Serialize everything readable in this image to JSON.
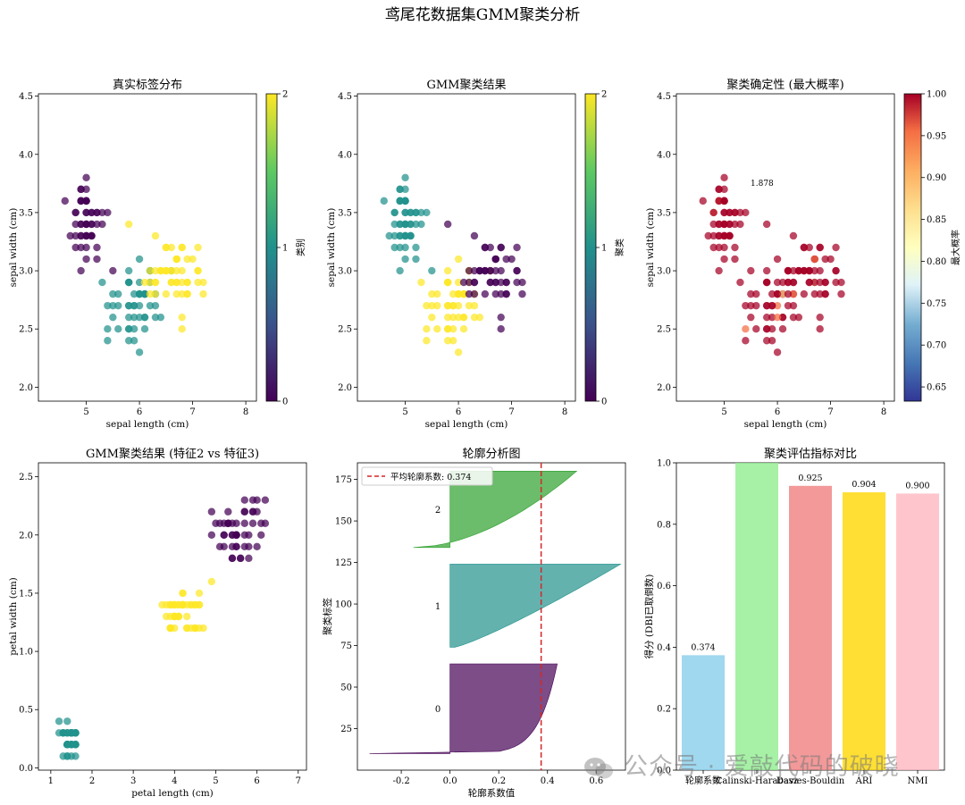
{
  "suptitle": "鸢尾花数据集GMM聚类分析",
  "watermark": "公众号 · 爱敲代码的破晓",
  "chart_data": [
    {
      "type": "scatter",
      "title": "真实标签分布",
      "xlabel": "sepal length (cm)",
      "ylabel": "sepal width (cm)",
      "xlim": [
        4.1,
        8.2
      ],
      "ylim": [
        1.88,
        4.52
      ],
      "xticks": [
        5,
        6,
        7,
        8
      ],
      "yticks": [
        2.0,
        2.5,
        3.0,
        3.5,
        4.0,
        4.5
      ],
      "colorbar": {
        "label": "类别",
        "range": [
          0,
          2
        ],
        "ticks": [
          0,
          1,
          2
        ],
        "cmap": "viridis"
      },
      "points_desc": "150 iris samples colored by true species (0 purple, 1 teal, 2 yellow)"
    },
    {
      "type": "scatter",
      "title": "GMM聚类结果",
      "xlabel": "sepal length (cm)",
      "ylabel": "sepal width (cm)",
      "xlim": [
        4.1,
        8.2
      ],
      "ylim": [
        1.88,
        4.52
      ],
      "xticks": [
        5,
        6,
        7,
        8
      ],
      "yticks": [
        2.0,
        2.5,
        3.0,
        3.5,
        4.0,
        4.5
      ],
      "colorbar": {
        "label": "聚类",
        "range": [
          0,
          2
        ],
        "ticks": [
          0,
          1,
          2
        ],
        "cmap": "viridis"
      },
      "points_desc": "150 samples colored by GMM cluster (1 teal setosa, 2 yellow, 0 purple)"
    },
    {
      "type": "scatter",
      "title": "聚类确定性 (最大概率)",
      "xlabel": "sepal length (cm)",
      "ylabel": "sepal width (cm)",
      "xlim": [
        4.1,
        8.2
      ],
      "ylim": [
        1.88,
        4.52
      ],
      "xticks": [
        5,
        6,
        7,
        8
      ],
      "yticks": [
        2.0,
        2.5,
        3.0,
        3.5,
        4.0,
        4.5
      ],
      "annotation": "1.878",
      "colorbar": {
        "label": "最大概率",
        "range": [
          0.633,
          1.0
        ],
        "ticks": [
          0.65,
          0.7,
          0.75,
          0.8,
          0.85,
          0.9,
          0.95,
          1.0
        ],
        "cmap": "RdYlBu_r"
      }
    },
    {
      "type": "scatter",
      "title": "GMM聚类结果 (特征2 vs 特征3)",
      "xlabel": "petal length (cm)",
      "ylabel": "petal width (cm)",
      "xlim": [
        0.7,
        7.2
      ],
      "ylim": [
        -0.02,
        2.62
      ],
      "xticks": [
        1,
        2,
        3,
        4,
        5,
        6,
        7
      ],
      "yticks": [
        0.0,
        0.5,
        1.0,
        1.5,
        2.0,
        2.5
      ]
    },
    {
      "type": "area",
      "title": "轮廓分析图",
      "xlabel": "轮廓系数值",
      "ylabel": "聚类标签",
      "xlim": [
        -0.38,
        0.72
      ],
      "ylim": [
        0,
        185
      ],
      "xticks": [
        -0.2,
        0.0,
        0.2,
        0.4,
        0.6
      ],
      "yticks": [
        25,
        50,
        75,
        100,
        125,
        150,
        175
      ],
      "average_line": 0.374,
      "legend": "平均轮廓系数: 0.374",
      "legend_position": "top-left",
      "clusters": [
        {
          "label": "0",
          "color": "#440154",
          "y_range": [
            10,
            64
          ]
        },
        {
          "label": "1",
          "color": "#21918c",
          "y_range": [
            74,
            124
          ]
        },
        {
          "label": "2",
          "color": "#2ca02c",
          "y_range": [
            134,
            180
          ]
        }
      ]
    },
    {
      "type": "bar",
      "title": "聚类评估指标对比",
      "ylabel": "得分 (DBI已取倒数)",
      "ylim": [
        0,
        1.0
      ],
      "yticks": [
        0.0,
        0.2,
        0.4,
        0.6,
        0.8,
        1.0
      ],
      "categories": [
        "轮廓系数",
        "Calinski-Harabasz",
        "Davies-Bouldin",
        "ARI",
        "NMI"
      ],
      "values": [
        0.374,
        1.0,
        0.925,
        0.904,
        0.9
      ],
      "value_labels": [
        "0.374",
        "",
        "0.925",
        "0.904",
        "0.900"
      ],
      "colors": [
        "#87ceeb",
        "#90ee90",
        "#f08080",
        "#ffd700",
        "#ffb6c1"
      ]
    }
  ]
}
